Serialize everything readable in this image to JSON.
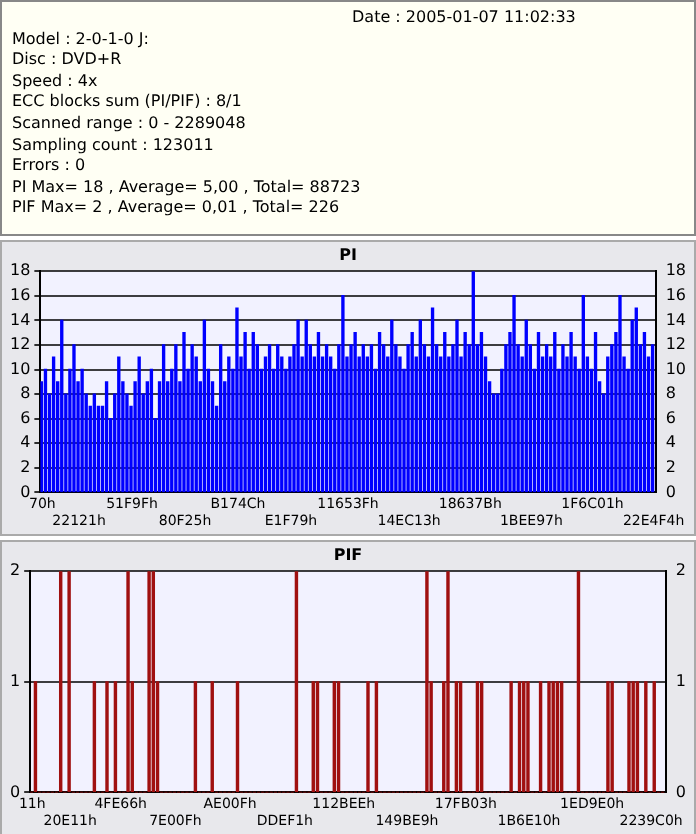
{
  "chart_data": [
    {
      "type": "other",
      "annotations": [
        "Date : 2005-01-07 11:02:33",
        "Model : 2-0-1-0 J:",
        "Disc : DVD+R",
        "Speed : 4x",
        "ECC blocks sum (PI/PIF) : 8/1",
        "Scanned range : 0 - 2289048",
        "Sampling count : 123011",
        "Errors : 0",
        "PI Max= 18 , Average= 5,00 , Total= 88723",
        "PIF Max= 2 , Average= 0,01 , Total= 226"
      ]
    },
    {
      "type": "bar",
      "title": "PI",
      "color": "#0000ff",
      "categories": [
        "70h",
        null,
        null,
        null,
        null,
        null,
        null,
        null,
        null,
        "22121h",
        null,
        null,
        null,
        null,
        null,
        null,
        null,
        null,
        null,
        null,
        null,
        null,
        "51F9Fh",
        null,
        null,
        null,
        null,
        null,
        null,
        null,
        null,
        null,
        null,
        null,
        null,
        "80F25h",
        null,
        null,
        null,
        null,
        null,
        null,
        null,
        null,
        null,
        null,
        null,
        null,
        "B174Ch",
        null,
        null,
        null,
        null,
        null,
        null,
        null,
        null,
        null,
        null,
        null,
        null,
        "E1F79h",
        null,
        null,
        null,
        null,
        null,
        null,
        null,
        null,
        null,
        null,
        null,
        null,
        null,
        "11653Fh",
        null,
        null,
        null,
        null,
        null,
        null,
        null,
        null,
        null,
        null,
        null,
        null,
        null,
        null,
        "14EC13h",
        null,
        null,
        null,
        null,
        null,
        null,
        null,
        null,
        null,
        null,
        null,
        null,
        null,
        null,
        "18637Bh",
        null,
        null,
        null,
        null,
        null,
        null,
        null,
        null,
        null,
        null,
        null,
        null,
        null,
        null,
        "1BEE97h",
        null,
        null,
        null,
        null,
        null,
        null,
        null,
        null,
        null,
        null,
        null,
        null,
        null,
        null,
        "1F6C01h",
        null,
        null,
        null,
        null,
        null,
        null,
        null,
        null,
        null,
        null,
        null,
        null,
        null,
        null,
        "22E4F4h"
      ],
      "values": [
        9,
        10,
        8,
        11,
        9,
        14,
        8,
        10,
        12,
        9,
        10,
        8,
        7,
        8,
        7,
        7,
        9,
        6,
        8,
        11,
        9,
        8,
        7,
        9,
        11,
        8,
        9,
        10,
        6,
        9,
        12,
        9,
        10,
        12,
        9,
        13,
        10,
        12,
        11,
        9,
        14,
        10,
        9,
        7,
        12,
        9,
        11,
        10,
        15,
        11,
        13,
        10,
        13,
        12,
        10,
        11,
        12,
        10,
        12,
        11,
        10,
        11,
        12,
        14,
        11,
        14,
        12,
        11,
        13,
        11,
        12,
        11,
        10,
        12,
        16,
        11,
        12,
        13,
        11,
        12,
        11,
        12,
        10,
        13,
        12,
        11,
        14,
        12,
        11,
        10,
        12,
        13,
        11,
        14,
        12,
        11,
        15,
        12,
        11,
        13,
        11,
        12,
        14,
        11,
        13,
        12,
        18,
        12,
        13,
        11,
        9,
        8,
        8,
        10,
        12,
        13,
        16,
        12,
        11,
        14,
        12,
        10,
        13,
        11,
        12,
        11,
        13,
        10,
        12,
        11,
        13,
        11,
        10,
        16,
        11,
        10,
        13,
        9,
        8,
        11,
        12,
        13,
        16,
        11,
        10,
        14,
        15,
        12,
        13,
        11,
        12
      ],
      "ylim": [
        0,
        18
      ],
      "yticks": [
        0,
        2,
        4,
        6,
        8,
        10,
        12,
        14,
        16,
        18
      ],
      "y2lim": [
        0,
        18
      ],
      "y2ticks": [
        0,
        2,
        4,
        6,
        8,
        10,
        12,
        14,
        16,
        18
      ],
      "grid": "y"
    },
    {
      "type": "bar",
      "title": "PIF",
      "color": "#a01010",
      "categories": [
        "11h",
        null,
        null,
        null,
        null,
        null,
        null,
        null,
        null,
        "20E11h",
        null,
        null,
        null,
        null,
        null,
        null,
        null,
        null,
        null,
        null,
        null,
        "4FE66h",
        null,
        null,
        null,
        null,
        null,
        null,
        null,
        null,
        null,
        null,
        null,
        null,
        "7E00Fh",
        null,
        null,
        null,
        null,
        null,
        null,
        null,
        null,
        null,
        null,
        null,
        null,
        "AE00Fh",
        null,
        null,
        null,
        null,
        null,
        null,
        null,
        null,
        null,
        null,
        null,
        null,
        "DDEF1h",
        null,
        null,
        null,
        null,
        null,
        null,
        null,
        null,
        null,
        null,
        null,
        null,
        null,
        "112BEEh",
        null,
        null,
        null,
        null,
        null,
        null,
        null,
        null,
        null,
        null,
        null,
        null,
        null,
        null,
        "149BE9h",
        null,
        null,
        null,
        null,
        null,
        null,
        null,
        null,
        null,
        null,
        null,
        null,
        null,
        "17FB03h",
        null,
        null,
        null,
        null,
        null,
        null,
        null,
        null,
        null,
        null,
        null,
        null,
        null,
        null,
        "1B6E10h",
        null,
        null,
        null,
        null,
        null,
        null,
        null,
        null,
        null,
        null,
        null,
        null,
        null,
        null,
        "1ED9E0h",
        null,
        null,
        null,
        null,
        null,
        null,
        null,
        null,
        null,
        null,
        null,
        null,
        null,
        "2239C0h",
        null,
        null,
        null
      ],
      "values": [
        0,
        1,
        0,
        0,
        0,
        0,
        0,
        2,
        0,
        2,
        0,
        0,
        0,
        0,
        0,
        1,
        0,
        0,
        1,
        0,
        1,
        0,
        0,
        2,
        1,
        0,
        0,
        0,
        2,
        2,
        1,
        0,
        0,
        0,
        0,
        0,
        0,
        0,
        0,
        1,
        0,
        0,
        0,
        1,
        0,
        0,
        0,
        0,
        0,
        1,
        0,
        0,
        0,
        0,
        0,
        0,
        0,
        0,
        0,
        0,
        0,
        0,
        0,
        2,
        0,
        0,
        0,
        1,
        1,
        0,
        0,
        0,
        1,
        1,
        0,
        0,
        0,
        0,
        0,
        0,
        1,
        0,
        1,
        0,
        0,
        0,
        0,
        0,
        0,
        0,
        0,
        0,
        0,
        0,
        2,
        1,
        0,
        0,
        1,
        2,
        0,
        1,
        1,
        0,
        0,
        0,
        1,
        1,
        0,
        0,
        0,
        0,
        0,
        0,
        1,
        0,
        1,
        1,
        1,
        0,
        0,
        1,
        0,
        1,
        1,
        1,
        1,
        0,
        0,
        0,
        2,
        0,
        0,
        0,
        0,
        0,
        0,
        1,
        1,
        0,
        0,
        0,
        1,
        1,
        1,
        0,
        1,
        0,
        1,
        0,
        0
      ],
      "ylim": [
        0,
        2
      ],
      "yticks": [
        0,
        1,
        2
      ],
      "y2lim": [
        0,
        2
      ],
      "y2ticks": [
        0,
        1,
        2
      ],
      "grid": "y"
    }
  ]
}
